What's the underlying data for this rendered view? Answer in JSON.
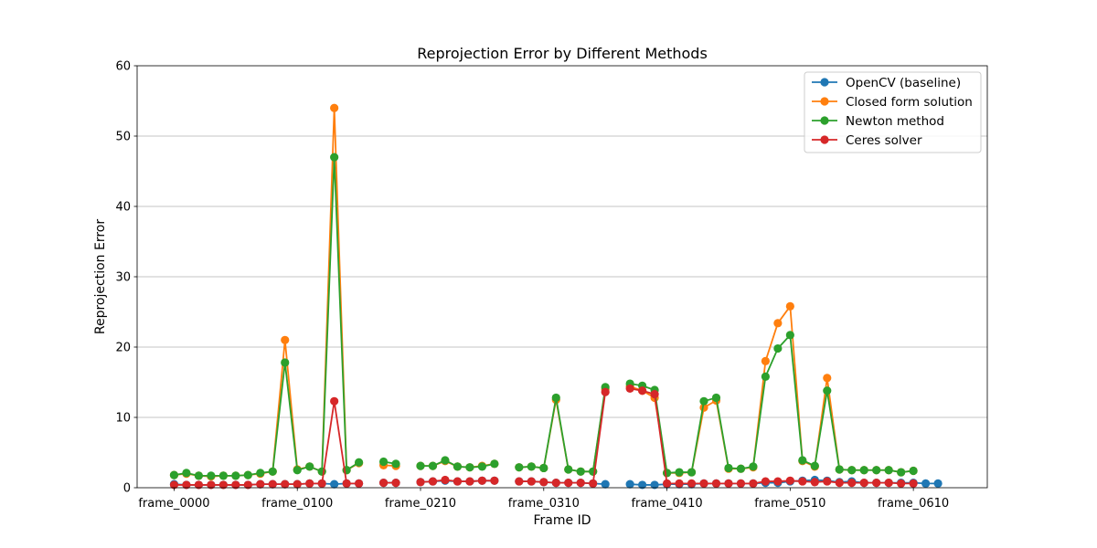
{
  "chart_data": {
    "type": "line",
    "title": "Reprojection Error by Different Methods",
    "xlabel": "Frame ID",
    "ylabel": "Reprojection Error",
    "ylim": [
      0,
      60
    ],
    "yticks": [
      0,
      10,
      20,
      30,
      40,
      50,
      60
    ],
    "xlim": [
      -3,
      66
    ],
    "xticks": [
      {
        "index": 0,
        "label": "frame_0000"
      },
      {
        "index": 10,
        "label": "frame_0100"
      },
      {
        "index": 20,
        "label": "frame_0210"
      },
      {
        "index": 30,
        "label": "frame_0310"
      },
      {
        "index": 40,
        "label": "frame_0410"
      },
      {
        "index": 50,
        "label": "frame_0510"
      },
      {
        "index": 60,
        "label": "frame_0610"
      }
    ],
    "grid": "horizontal",
    "legend_position": "top-right",
    "series": [
      {
        "name": "OpenCV (baseline)",
        "color": "#1f77b4",
        "values": [
          0.5,
          0.4,
          0.4,
          0.4,
          0.4,
          0.4,
          0.4,
          0.5,
          0.5,
          0.5,
          0.5,
          0.6,
          0.6,
          0.5,
          0.6,
          0.6,
          null,
          0.7,
          0.7,
          null,
          0.8,
          0.9,
          1.0,
          0.9,
          0.9,
          1.0,
          1.0,
          null,
          0.9,
          0.9,
          0.8,
          0.7,
          0.7,
          0.7,
          0.6,
          0.5,
          null,
          0.5,
          0.4,
          0.4,
          0.5,
          0.5,
          0.5,
          0.6,
          0.6,
          0.6,
          0.6,
          0.6,
          0.7,
          0.7,
          0.9,
          1.0,
          1.1,
          1.0,
          0.8,
          0.9,
          0.7,
          0.7,
          0.7,
          0.7,
          0.7,
          0.6,
          0.6
        ]
      },
      {
        "name": "Closed form solution",
        "color": "#ff7f0e",
        "values": [
          1.8,
          2.0,
          1.7,
          1.6,
          1.7,
          1.7,
          1.8,
          2.0,
          2.3,
          21.0,
          2.6,
          3.0,
          2.3,
          54.0,
          2.5,
          3.5,
          null,
          3.2,
          3.1,
          null,
          3.1,
          3.1,
          3.8,
          3.0,
          2.9,
          3.1,
          3.4,
          null,
          2.9,
          3.0,
          2.8,
          12.5,
          2.6,
          2.3,
          2.3,
          14.0,
          null,
          14.4,
          13.8,
          12.8,
          2.1,
          2.1,
          2.2,
          11.4,
          12.4,
          2.7,
          2.7,
          2.9,
          18.0,
          23.4,
          25.8,
          3.8,
          3.0,
          15.6,
          2.6,
          2.5,
          2.5,
          2.5,
          2.5,
          2.2,
          2.4
        ]
      },
      {
        "name": "Newton method",
        "color": "#2ca02c",
        "values": [
          1.8,
          2.1,
          1.7,
          1.7,
          1.7,
          1.7,
          1.8,
          2.1,
          2.3,
          17.8,
          2.5,
          3.0,
          2.3,
          47.0,
          2.5,
          3.6,
          null,
          3.7,
          3.4,
          null,
          3.1,
          3.1,
          3.9,
          3.0,
          2.9,
          3.0,
          3.4,
          null,
          2.9,
          3.0,
          2.8,
          12.8,
          2.6,
          2.3,
          2.3,
          14.3,
          null,
          14.8,
          14.5,
          13.9,
          2.1,
          2.2,
          2.2,
          12.3,
          12.8,
          2.8,
          2.7,
          3.0,
          15.8,
          19.8,
          21.7,
          3.9,
          3.1,
          13.8,
          2.6,
          2.5,
          2.5,
          2.5,
          2.5,
          2.2,
          2.4
        ]
      },
      {
        "name": "Ceres solver",
        "color": "#d62728",
        "values": [
          0.4,
          0.4,
          0.4,
          0.4,
          0.4,
          0.4,
          0.4,
          0.5,
          0.5,
          0.5,
          0.5,
          0.6,
          0.6,
          12.3,
          0.6,
          0.6,
          null,
          0.7,
          0.7,
          null,
          0.8,
          0.9,
          1.1,
          0.9,
          0.9,
          1.0,
          1.0,
          null,
          0.9,
          0.9,
          0.8,
          0.7,
          0.7,
          0.7,
          0.6,
          13.6,
          null,
          14.1,
          13.8,
          13.3,
          0.6,
          0.6,
          0.6,
          0.6,
          0.6,
          0.6,
          0.6,
          0.6,
          0.9,
          0.9,
          1.0,
          0.9,
          0.8,
          0.9,
          0.7,
          0.7,
          0.7,
          0.7,
          0.7,
          0.6,
          0.6
        ]
      }
    ]
  }
}
